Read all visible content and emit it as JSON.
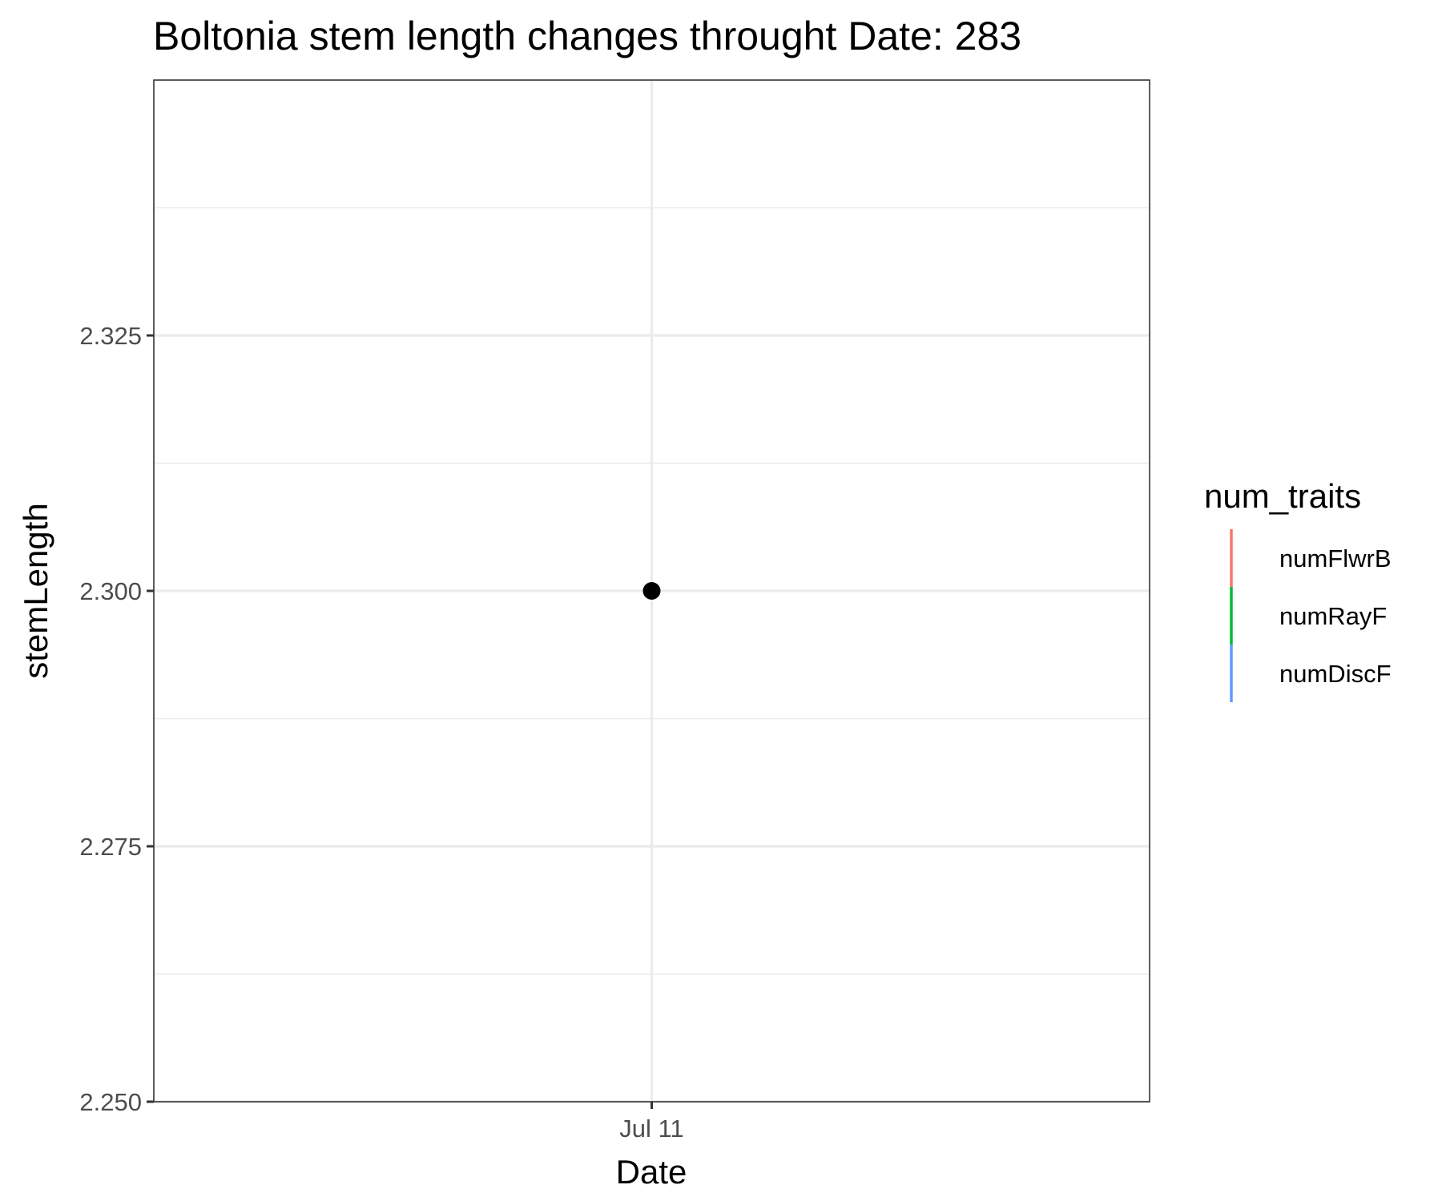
{
  "chart_data": {
    "type": "scatter",
    "title": "Boltonia stem length changes throught Date:  283",
    "xlabel": "Date",
    "ylabel": "stemLength",
    "x_categories": [
      "Jul 11"
    ],
    "points": [
      {
        "x": "Jul 11",
        "y": 2.3
      }
    ],
    "ylim": [
      2.25,
      2.35
    ],
    "y_ticks": [
      2.25,
      2.275,
      2.3,
      2.325
    ],
    "y_tick_labels": [
      "2.250",
      "2.275",
      "2.300",
      "2.325"
    ],
    "grid": true,
    "point_color": "#000000",
    "legend": {
      "title": "num_traits",
      "position": "right",
      "entries": [
        {
          "label": "numFlwrB",
          "color": "#F8766D"
        },
        {
          "label": "numRayF",
          "color": "#00BA38"
        },
        {
          "label": "numDiscF",
          "color": "#619CFF"
        }
      ]
    }
  }
}
